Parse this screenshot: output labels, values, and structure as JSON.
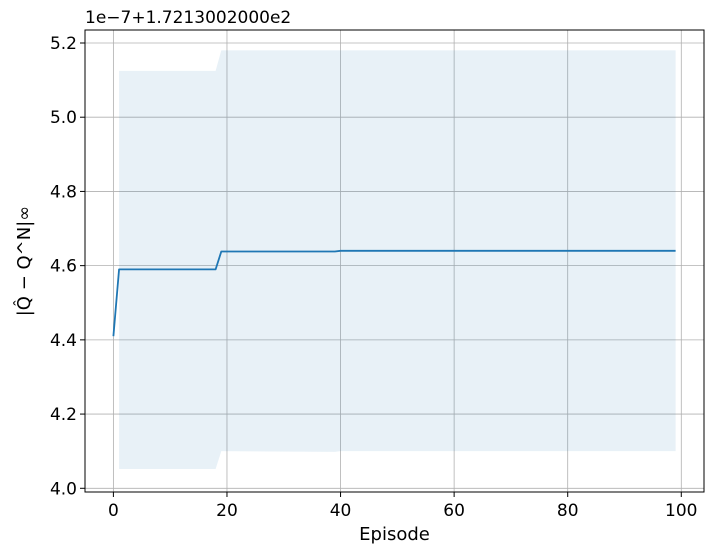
{
  "chart_data": {
    "type": "line",
    "offset_text": "1e−7+1.7213002000e2",
    "xlabel": "Episode",
    "ylabel": "|Q̂ − Q^N|∞",
    "x_ticks": [
      0,
      20,
      40,
      60,
      80,
      100
    ],
    "y_ticks": [
      4.0,
      4.2,
      4.4,
      4.6,
      4.8,
      5.0,
      5.2
    ],
    "y_tick_labels": [
      "4.0",
      "4.2",
      "4.4",
      "4.6",
      "4.8",
      "5.0",
      "5.2"
    ],
    "xlim": [
      -5,
      104
    ],
    "ylim": [
      3.99,
      5.235
    ],
    "grid": true,
    "series": [
      {
        "color": "#1f77b4",
        "points": [
          [
            0,
            4.41
          ],
          [
            1,
            4.59
          ],
          [
            18,
            4.59
          ],
          [
            19,
            4.638
          ],
          [
            39,
            4.638
          ],
          [
            40,
            4.64
          ],
          [
            99,
            4.64
          ]
        ]
      }
    ],
    "band": {
      "color": "#1f77b4",
      "opacity": 0.1,
      "upper": [
        [
          1,
          5.125
        ],
        [
          18,
          5.125
        ],
        [
          19,
          5.18
        ],
        [
          99,
          5.18
        ]
      ],
      "lower": [
        [
          1,
          4.052
        ],
        [
          18,
          4.052
        ],
        [
          19,
          4.1
        ],
        [
          39,
          4.098
        ],
        [
          40,
          4.1
        ],
        [
          99,
          4.1
        ]
      ]
    }
  }
}
